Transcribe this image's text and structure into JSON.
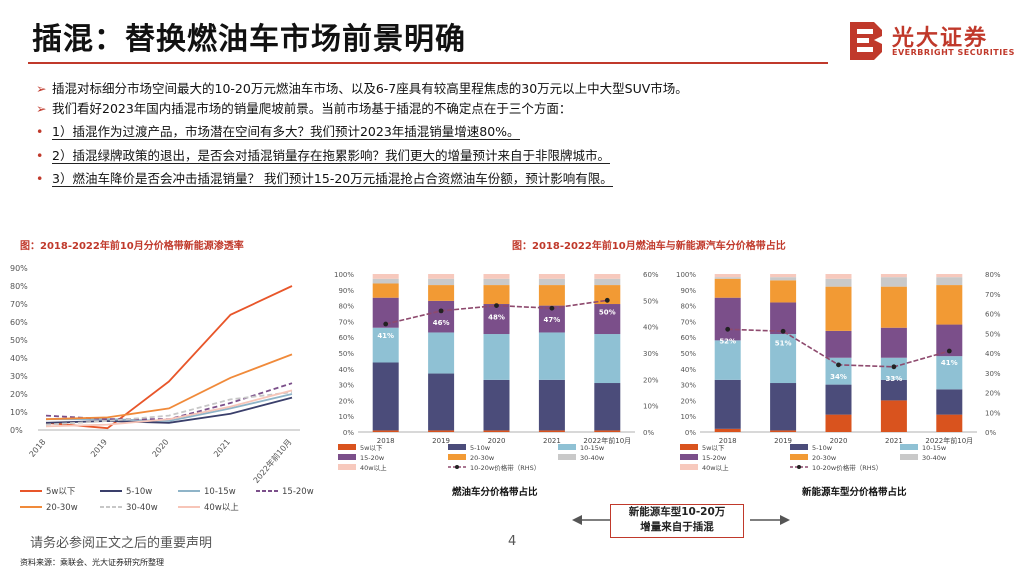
{
  "title": "插混：替换燃油车市场前景明确",
  "logo": {
    "cn": "光大证券",
    "en": "EVERBRIGHT SECURITIES",
    "brand_color": "#c0392b"
  },
  "bullets": [
    {
      "marker": "➢",
      "text": "插混对标细分市场空间最大的10-20万元燃油车市场、以及6-7座具有较高里程焦虑的30万元以上中大型SUV市场。"
    },
    {
      "marker": "➢",
      "text": "我们看好2023年国内插混市场的销量爬坡前景。当前市场基于插混的不确定点在于三个方面："
    },
    {
      "marker": "•",
      "text": "1）插混作为过渡产品，市场潜在空间有多大？我们预计2023年插混销量增速80%。"
    },
    {
      "marker": "•",
      "text": "2）插混绿牌政策的退出，是否会对插混销量存在拖累影响？我们更大的增量预计来自于非限牌城市。"
    },
    {
      "marker": "•",
      "text": "3）燃油车降价是否会冲击插混销量？ 我们预计15-20万元插混抢占合资燃油车份额，预计影响有限。"
    }
  ],
  "captions": {
    "left": "图：2018-2022年前10月分价格带新能源渗透率",
    "right": "图：2018-2022年前10月燃油车与新能源汽车分价格带占比",
    "ice": "燃油车分价格带占比",
    "nev": "新能源车型分价格带占比"
  },
  "note_box": {
    "line1": "新能源车型10-20万",
    "line2": "增量来自于插混"
  },
  "disclaimer": "请务必参阅正文之后的重要声明",
  "page_number": "4",
  "source": "资料来源：乘联会、光大证券研究所整理",
  "chart_data": [
    {
      "type": "line",
      "title": "2018-2022年前10月分价格带新能源渗透率",
      "categories": [
        "2018",
        "2019",
        "2020",
        "2021",
        "2022年前10月"
      ],
      "ylim": [
        0,
        90
      ],
      "yticks": [
        "0%",
        "10%",
        "20%",
        "30%",
        "40%",
        "50%",
        "60%",
        "70%",
        "80%",
        "90%"
      ],
      "series": [
        {
          "name": "5w以下",
          "color": "#e8562a",
          "values": [
            4,
            1,
            27,
            64,
            80
          ]
        },
        {
          "name": "5-10w",
          "color": "#3a3f6b",
          "values": [
            4,
            5,
            4,
            9,
            18
          ]
        },
        {
          "name": "10-15w",
          "color": "#8fb4c8",
          "values": [
            6,
            6,
            5,
            12,
            20
          ]
        },
        {
          "name": "15-20w",
          "color": "#7b4f8a",
          "values": [
            8,
            6,
            6,
            15,
            26
          ]
        },
        {
          "name": "20-30w",
          "color": "#f08a3a",
          "values": [
            6,
            7,
            12,
            29,
            42
          ]
        },
        {
          "name": "30-40w",
          "color": "#c7c7c7",
          "values": [
            3,
            5,
            8,
            17,
            21
          ]
        },
        {
          "name": "40w以上",
          "color": "#f7c5b8",
          "values": [
            2,
            3,
            6,
            13,
            22
          ]
        }
      ]
    },
    {
      "type": "bar",
      "stacked": true,
      "title": "燃油车分价格带占比",
      "categories": [
        "2018",
        "2019",
        "2020",
        "2021",
        "2022年前10月"
      ],
      "yticks": [
        "0%",
        "10%",
        "20%",
        "30%",
        "40%",
        "50%",
        "60%",
        "70%",
        "80%",
        "90%",
        "100%"
      ],
      "rhs_ticks": [
        "0%",
        "10%",
        "20%",
        "30%",
        "40%",
        "50%",
        "60%"
      ],
      "series": [
        {
          "name": "5w以下",
          "color": "#d9531e",
          "values": [
            1,
            1,
            1,
            1,
            1
          ]
        },
        {
          "name": "5-10w",
          "color": "#4b4c7a",
          "values": [
            43,
            36,
            32,
            32,
            30
          ]
        },
        {
          "name": "10-15w",
          "color": "#8fc1d4",
          "values": [
            22,
            26,
            29,
            30,
            31
          ]
        },
        {
          "name": "15-20w",
          "color": "#7b4f8a",
          "values": [
            19,
            20,
            19,
            17,
            19
          ]
        },
        {
          "name": "20-30w",
          "color": "#f29a34",
          "values": [
            9,
            10,
            12,
            13,
            12
          ]
        },
        {
          "name": "30-40w",
          "color": "#c9c9c9",
          "values": [
            3,
            4,
            4,
            4,
            4
          ]
        },
        {
          "name": "40w以上",
          "color": "#f7c9bd",
          "values": [
            3,
            3,
            3,
            3,
            3
          ]
        }
      ],
      "line": {
        "name": "10-20w价格带（RHS）",
        "color": "#8e4a6e",
        "values": [
          41,
          46,
          48,
          47,
          50
        ],
        "labels": [
          "41%",
          "46%",
          "48%",
          "47%",
          "50%"
        ]
      },
      "legend": [
        "5w以下",
        "5-10w",
        "10-15w",
        "15-20w",
        "20-30w",
        "30-40w",
        "40w以上",
        "10-20w价格带（RHS）"
      ]
    },
    {
      "type": "bar",
      "stacked": true,
      "title": "新能源车型分价格带占比",
      "categories": [
        "2018",
        "2019",
        "2020",
        "2021",
        "2022年前10月"
      ],
      "yticks": [
        "0%",
        "10%",
        "20%",
        "30%",
        "40%",
        "50%",
        "60%",
        "70%",
        "80%",
        "90%",
        "100%"
      ],
      "rhs_ticks": [
        "0%",
        "10%",
        "20%",
        "30%",
        "40%",
        "50%",
        "60%",
        "70%",
        "80%"
      ],
      "series": [
        {
          "name": "5w以下",
          "color": "#d9531e",
          "values": [
            2,
            1,
            11,
            20,
            11
          ]
        },
        {
          "name": "5-10w",
          "color": "#4b4c7a",
          "values": [
            31,
            30,
            19,
            13,
            16
          ]
        },
        {
          "name": "10-15w",
          "color": "#8fc1d4",
          "values": [
            25,
            31,
            17,
            14,
            21
          ]
        },
        {
          "name": "15-20w",
          "color": "#7b4f8a",
          "values": [
            27,
            20,
            17,
            19,
            20
          ]
        },
        {
          "name": "20-30w",
          "color": "#f29a34",
          "values": [
            12,
            14,
            28,
            26,
            25
          ]
        },
        {
          "name": "30-40w",
          "color": "#c9c9c9",
          "values": [
            1,
            2,
            5,
            6,
            5
          ]
        },
        {
          "name": "40w以上",
          "color": "#f7c9bd",
          "values": [
            2,
            2,
            3,
            2,
            2
          ]
        }
      ],
      "line": {
        "name": "10-20w价格带（RHS）",
        "color": "#8e4a6e",
        "values": [
          52,
          51,
          34,
          33,
          41
        ],
        "labels": [
          "52%",
          "51%",
          "34%",
          "33%",
          "41%"
        ]
      },
      "legend": [
        "5w以下",
        "5-10w",
        "10-15w",
        "15-20w",
        "20-30w",
        "30-40w",
        "40w以上",
        "10-20w价格带（RHS）"
      ]
    }
  ]
}
